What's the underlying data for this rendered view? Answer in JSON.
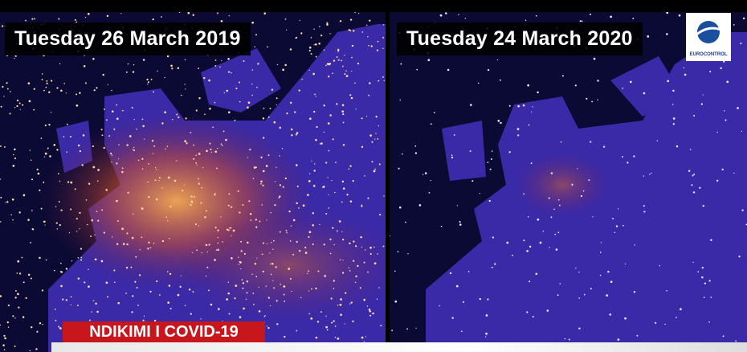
{
  "panels": [
    {
      "title": "Tuesday 26 March 2019"
    },
    {
      "title": "Tuesday 24 March 2020"
    }
  ],
  "logo": {
    "text": "EUROCONTROL"
  },
  "banner": {
    "text": "NDIKIMI I COVID-19"
  }
}
